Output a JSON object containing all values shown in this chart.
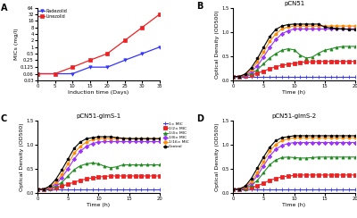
{
  "panel_A": {
    "xlabel": "Induction time (Days)",
    "ylabel": "MICs (mg/l)",
    "radezolid_x": [
      0,
      5,
      10,
      15,
      20,
      25,
      30,
      35
    ],
    "radezolid_y": [
      0.06,
      0.06,
      0.06,
      0.12,
      0.12,
      0.25,
      0.5,
      1.0
    ],
    "linezolid_x": [
      0,
      5,
      10,
      15,
      20,
      25,
      30,
      35
    ],
    "linezolid_y": [
      0.06,
      0.06,
      0.12,
      0.25,
      0.5,
      2.0,
      8.0,
      32.0
    ],
    "radezolid_color": "#3333FF",
    "linezolid_color": "#EE2222",
    "yticks": [
      0.03,
      0.06,
      0.125,
      0.25,
      0.5,
      1,
      2,
      4,
      8,
      16,
      32,
      64
    ],
    "ytick_labels": [
      "0.03",
      "0.06",
      "0.125",
      "0.25",
      "0.5",
      "1",
      "2",
      "4",
      "8",
      "16",
      "32",
      "64"
    ],
    "ylim": [
      0.03,
      64
    ],
    "xlim": [
      0,
      35
    ],
    "xticks": [
      0,
      5,
      10,
      15,
      20,
      25,
      30,
      35
    ]
  },
  "biofilm_common": {
    "xlabel": "Time (h)",
    "ylabel": "Optical Density (OD500)",
    "x": [
      0,
      1,
      2,
      3,
      4,
      5,
      6,
      7,
      8,
      9,
      10,
      11,
      12,
      13,
      14,
      15,
      16,
      17,
      18,
      19,
      20
    ],
    "ylim": [
      0,
      1.5
    ],
    "yticks": [
      0.0,
      0.5,
      1.0,
      1.5
    ],
    "xticks": [
      0,
      5,
      10,
      15,
      20
    ],
    "colors": [
      "#3333FF",
      "#EE2222",
      "#228B22",
      "#9B30FF",
      "#FF8C00",
      "#000000"
    ],
    "legend_labels": [
      "1× MIC",
      "1/2× MIC",
      "1/4× MIC",
      "1/8× MIC",
      "1/16× MIC",
      "Control"
    ],
    "markers": [
      "+",
      "s",
      "^",
      "D",
      "o",
      "p"
    ]
  },
  "panel_B": {
    "title": "pCN51",
    "y_1x": [
      0.08,
      0.08,
      0.08,
      0.08,
      0.08,
      0.08,
      0.08,
      0.08,
      0.08,
      0.08,
      0.08,
      0.08,
      0.08,
      0.08,
      0.08,
      0.08,
      0.08,
      0.08,
      0.08,
      0.08,
      0.08
    ],
    "y_half": [
      0.08,
      0.08,
      0.09,
      0.11,
      0.15,
      0.19,
      0.24,
      0.28,
      0.31,
      0.33,
      0.35,
      0.37,
      0.38,
      0.38,
      0.39,
      0.39,
      0.39,
      0.39,
      0.39,
      0.39,
      0.39
    ],
    "y_quarter": [
      0.08,
      0.08,
      0.1,
      0.14,
      0.22,
      0.34,
      0.46,
      0.55,
      0.62,
      0.65,
      0.63,
      0.52,
      0.46,
      0.48,
      0.56,
      0.62,
      0.65,
      0.68,
      0.7,
      0.7,
      0.7
    ],
    "y_eighth": [
      0.08,
      0.08,
      0.11,
      0.18,
      0.3,
      0.48,
      0.68,
      0.84,
      0.96,
      1.02,
      1.06,
      1.06,
      1.06,
      1.06,
      1.06,
      1.06,
      1.06,
      1.06,
      1.06,
      1.06,
      1.06
    ],
    "y_sixteenth": [
      0.08,
      0.08,
      0.12,
      0.22,
      0.38,
      0.58,
      0.8,
      0.96,
      1.06,
      1.1,
      1.12,
      1.12,
      1.12,
      1.12,
      1.12,
      1.12,
      1.12,
      1.12,
      1.12,
      1.12,
      1.12
    ],
    "y_control": [
      0.08,
      0.08,
      0.13,
      0.26,
      0.45,
      0.68,
      0.9,
      1.05,
      1.12,
      1.15,
      1.16,
      1.16,
      1.16,
      1.16,
      1.16,
      1.1,
      1.08,
      1.07,
      1.06,
      1.05,
      1.05
    ]
  },
  "panel_C": {
    "title": "pCN51-glmS-1",
    "y_1x": [
      0.08,
      0.08,
      0.08,
      0.08,
      0.08,
      0.08,
      0.08,
      0.08,
      0.08,
      0.08,
      0.08,
      0.08,
      0.08,
      0.08,
      0.08,
      0.08,
      0.08,
      0.08,
      0.08,
      0.08,
      0.08
    ],
    "y_half": [
      0.08,
      0.08,
      0.09,
      0.11,
      0.14,
      0.18,
      0.22,
      0.26,
      0.29,
      0.31,
      0.33,
      0.34,
      0.35,
      0.35,
      0.35,
      0.35,
      0.35,
      0.35,
      0.35,
      0.35,
      0.35
    ],
    "y_quarter": [
      0.08,
      0.08,
      0.1,
      0.14,
      0.22,
      0.35,
      0.48,
      0.56,
      0.6,
      0.62,
      0.6,
      0.55,
      0.52,
      0.54,
      0.58,
      0.58,
      0.58,
      0.58,
      0.58,
      0.58,
      0.58
    ],
    "y_eighth": [
      0.08,
      0.08,
      0.11,
      0.18,
      0.32,
      0.5,
      0.7,
      0.86,
      0.96,
      1.02,
      1.05,
      1.06,
      1.06,
      1.06,
      1.06,
      1.06,
      1.06,
      1.06,
      1.06,
      1.06,
      1.06
    ],
    "y_sixteenth": [
      0.08,
      0.08,
      0.12,
      0.22,
      0.38,
      0.6,
      0.82,
      0.96,
      1.05,
      1.1,
      1.12,
      1.12,
      1.12,
      1.12,
      1.12,
      1.12,
      1.12,
      1.12,
      1.12,
      1.12,
      1.12
    ],
    "y_control": [
      0.08,
      0.08,
      0.14,
      0.28,
      0.48,
      0.7,
      0.92,
      1.05,
      1.12,
      1.14,
      1.16,
      1.16,
      1.16,
      1.14,
      1.13,
      1.12,
      1.12,
      1.12,
      1.12,
      1.12,
      1.12
    ]
  },
  "panel_D": {
    "title": "pCN51-glmS-2",
    "y_1x": [
      0.08,
      0.08,
      0.08,
      0.08,
      0.08,
      0.08,
      0.08,
      0.08,
      0.08,
      0.08,
      0.08,
      0.08,
      0.08,
      0.08,
      0.08,
      0.08,
      0.08,
      0.08,
      0.08,
      0.08,
      0.08
    ],
    "y_half": [
      0.08,
      0.08,
      0.09,
      0.11,
      0.15,
      0.2,
      0.26,
      0.3,
      0.33,
      0.35,
      0.36,
      0.37,
      0.37,
      0.37,
      0.37,
      0.37,
      0.37,
      0.37,
      0.37,
      0.37,
      0.37
    ],
    "y_quarter": [
      0.08,
      0.08,
      0.1,
      0.16,
      0.26,
      0.42,
      0.58,
      0.68,
      0.73,
      0.74,
      0.73,
      0.72,
      0.72,
      0.73,
      0.74,
      0.74,
      0.74,
      0.74,
      0.74,
      0.74,
      0.74
    ],
    "y_eighth": [
      0.08,
      0.08,
      0.12,
      0.2,
      0.36,
      0.56,
      0.76,
      0.9,
      0.98,
      1.02,
      1.04,
      1.04,
      1.04,
      1.04,
      1.04,
      1.04,
      1.04,
      1.04,
      1.04,
      1.04,
      1.04
    ],
    "y_sixteenth": [
      0.08,
      0.08,
      0.13,
      0.24,
      0.42,
      0.65,
      0.86,
      1.0,
      1.08,
      1.12,
      1.14,
      1.14,
      1.14,
      1.14,
      1.14,
      1.14,
      1.14,
      1.14,
      1.14,
      1.14,
      1.14
    ],
    "y_control": [
      0.08,
      0.08,
      0.14,
      0.3,
      0.52,
      0.74,
      0.94,
      1.08,
      1.14,
      1.16,
      1.18,
      1.18,
      1.18,
      1.18,
      1.18,
      1.18,
      1.18,
      1.18,
      1.18,
      1.18,
      1.18
    ]
  }
}
